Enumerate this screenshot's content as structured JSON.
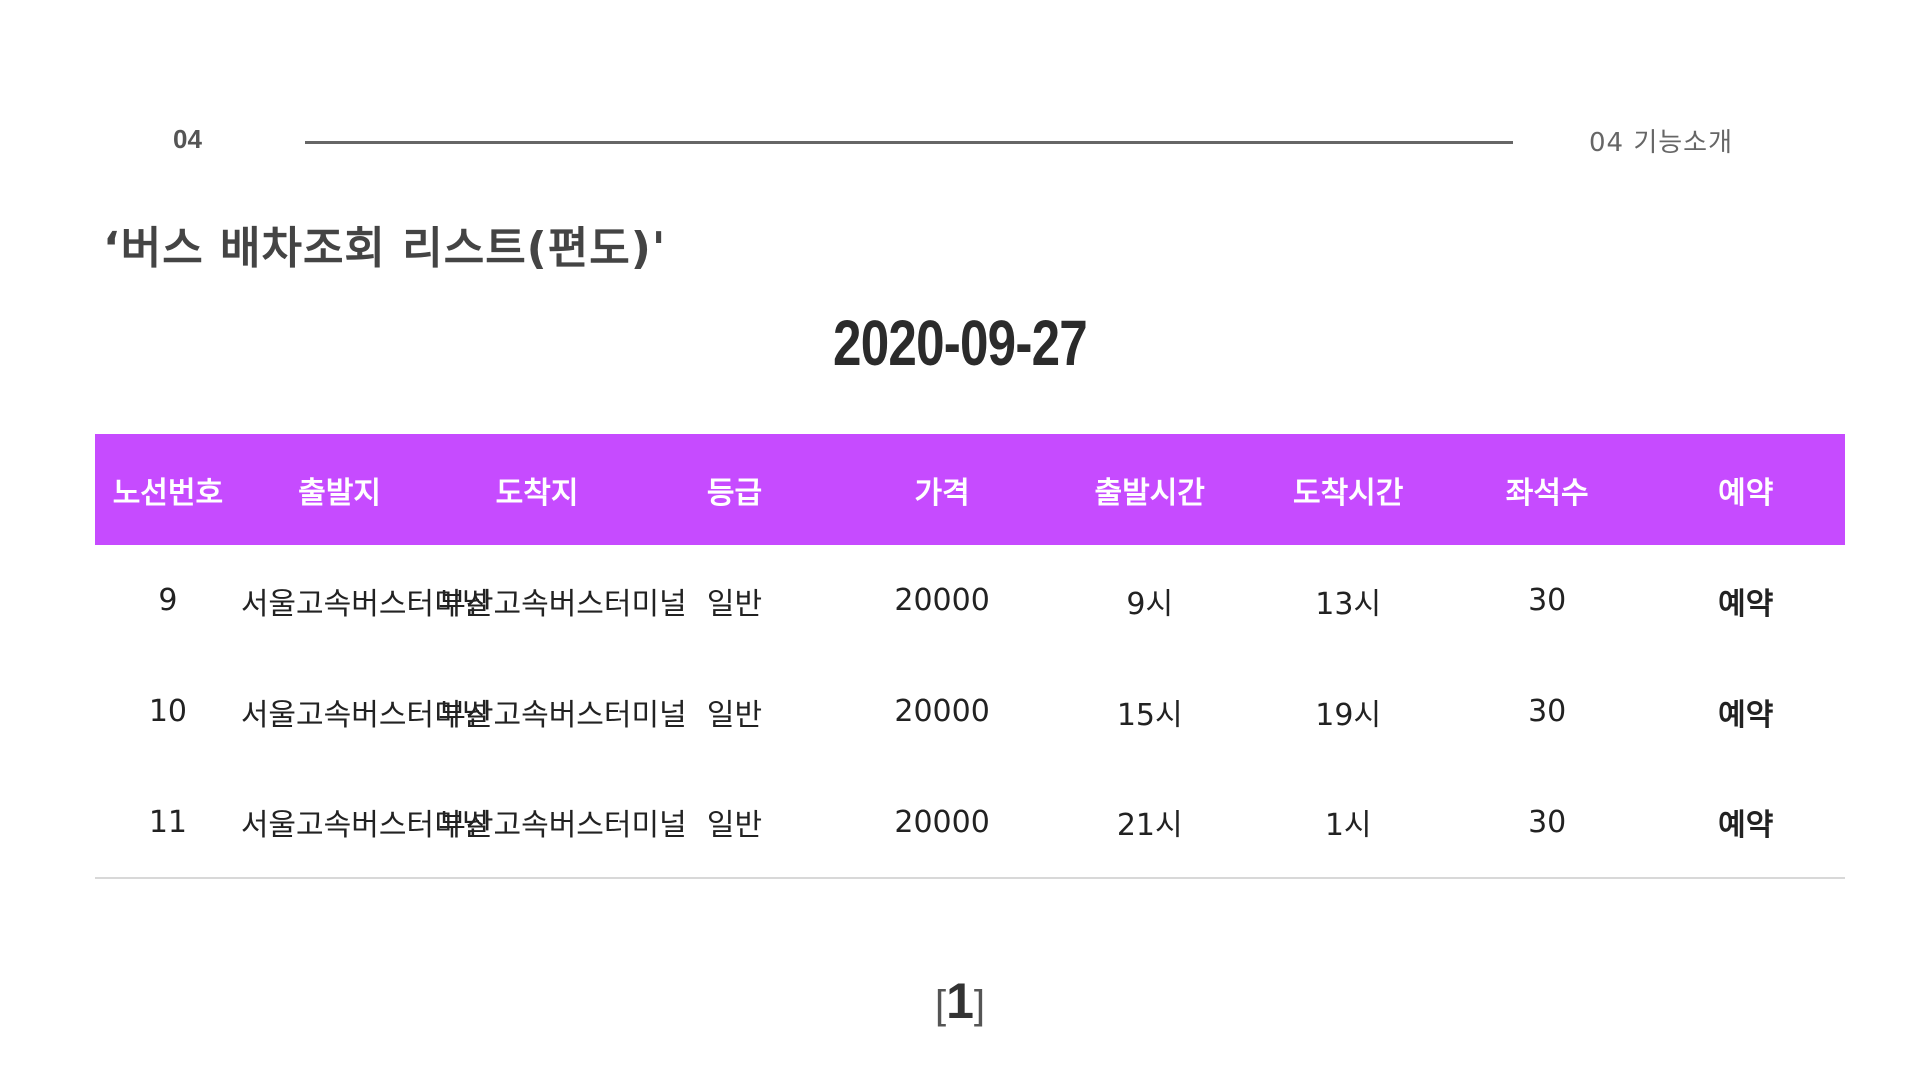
{
  "header": {
    "slide_number": "04",
    "section_label": "04  기능소개"
  },
  "page_title": "‘버스 배차조회 리스트(편도)'",
  "date": "2020-09-27",
  "table": {
    "columns": [
      "노선번호",
      "출발지",
      "도착지",
      "등급",
      "가격",
      "출발시간",
      "도착시간",
      "좌석수",
      "예약"
    ],
    "rows": [
      [
        "9",
        "서울고속버스터미널",
        "부산고속버스터미널",
        "일반",
        "20000",
        "9시",
        "13시",
        "30",
        "예약"
      ],
      [
        "10",
        "서울고속버스터미널",
        "부산고속버스터미널",
        "일반",
        "20000",
        "15시",
        "19시",
        "30",
        "예약"
      ],
      [
        "11",
        "서울고속버스터미널",
        "부산고속버스터미널",
        "일반",
        "20000",
        "21시",
        "1시",
        "30",
        "예약"
      ]
    ]
  },
  "pagination": {
    "open_bracket": "[",
    "current_page": "1",
    "close_bracket": "]"
  },
  "colors": {
    "header_bg": "#c64bff",
    "header_text": "#ffffff",
    "rule": "#666666"
  }
}
